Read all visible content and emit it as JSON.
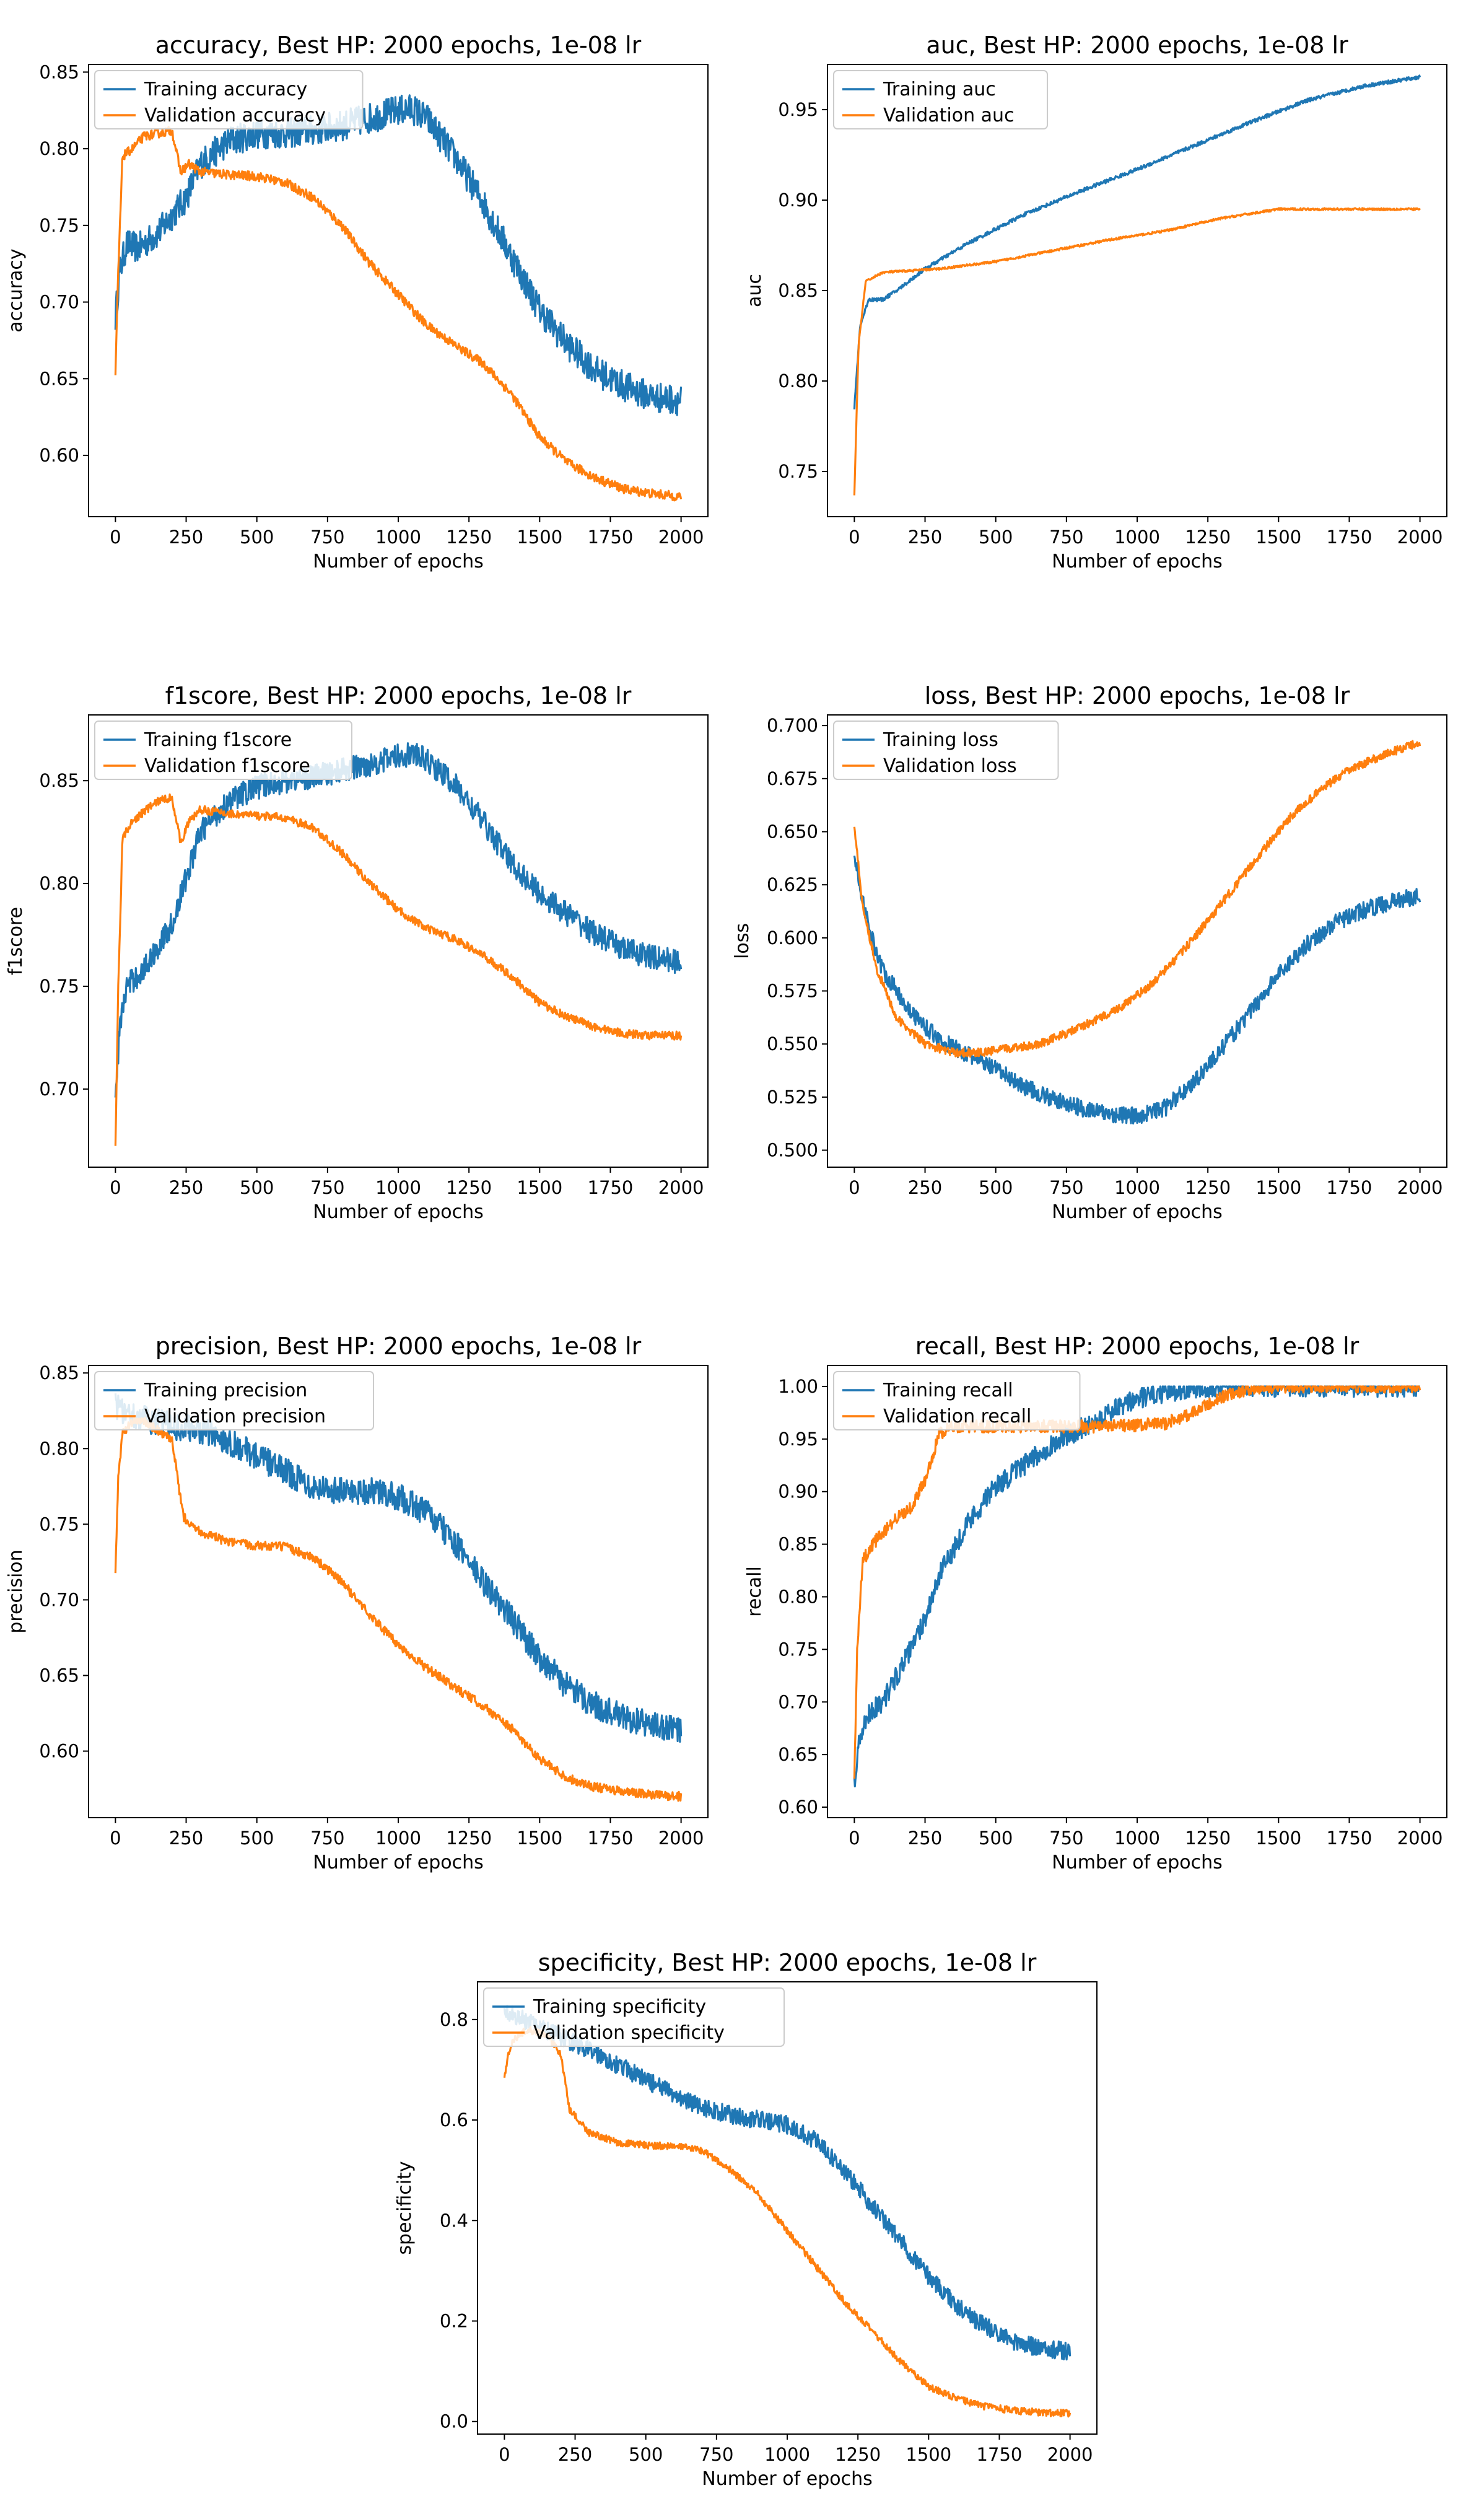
{
  "colors": {
    "training": "#1f77b4",
    "validation": "#ff7f0e"
  },
  "chart_data": [
    {
      "type": "line",
      "title": "accuracy, Best HP: 2000 epochs, 1e-08 lr",
      "xlabel": "Number of epochs",
      "ylabel": "accuracy",
      "xlim": [
        -95,
        2095
      ],
      "ylim": [
        0.56,
        0.855
      ],
      "xticks": [
        0,
        250,
        500,
        750,
        1000,
        1250,
        1500,
        1750,
        2000
      ],
      "yticks": [
        0.6,
        0.65,
        0.7,
        0.75,
        0.8,
        0.85
      ],
      "ytick_labels": [
        "0.60",
        "0.65",
        "0.70",
        "0.75",
        "0.80",
        "0.85"
      ],
      "legend": "top-left",
      "series": [
        {
          "name": "Training accuracy",
          "color": "#1f77b4",
          "noise": 0.01,
          "x": [
            0,
            15,
            40,
            80,
            150,
            250,
            300,
            400,
            500,
            600,
            700,
            800,
            900,
            1000,
            1050,
            1100,
            1200,
            1300,
            1400,
            1500,
            1600,
            1700,
            1800,
            1900,
            2000
          ],
          "y": [
            0.69,
            0.72,
            0.738,
            0.735,
            0.745,
            0.768,
            0.79,
            0.805,
            0.81,
            0.81,
            0.812,
            0.815,
            0.82,
            0.825,
            0.826,
            0.82,
            0.795,
            0.765,
            0.73,
            0.695,
            0.672,
            0.655,
            0.645,
            0.638,
            0.636
          ]
        },
        {
          "name": "Validation accuracy",
          "color": "#ff7f0e",
          "noise": 0.003,
          "x": [
            0,
            10,
            25,
            60,
            100,
            150,
            200,
            230,
            260,
            300,
            400,
            500,
            600,
            700,
            800,
            900,
            1000,
            1100,
            1200,
            1300,
            1400,
            1500,
            1600,
            1700,
            1800,
            1900,
            2000
          ],
          "y": [
            0.652,
            0.72,
            0.795,
            0.8,
            0.808,
            0.81,
            0.812,
            0.785,
            0.79,
            0.785,
            0.783,
            0.782,
            0.778,
            0.768,
            0.75,
            0.725,
            0.705,
            0.685,
            0.672,
            0.66,
            0.64,
            0.612,
            0.595,
            0.585,
            0.578,
            0.575,
            0.573
          ]
        }
      ]
    },
    {
      "type": "line",
      "title": "auc, Best HP: 2000 epochs, 1e-08 lr",
      "xlabel": "Number of epochs",
      "ylabel": "auc",
      "xlim": [
        -95,
        2095
      ],
      "ylim": [
        0.725,
        0.975
      ],
      "xticks": [
        0,
        250,
        500,
        750,
        1000,
        1250,
        1500,
        1750,
        2000
      ],
      "yticks": [
        0.75,
        0.8,
        0.85,
        0.9,
        0.95
      ],
      "ytick_labels": [
        "0.75",
        "0.80",
        "0.85",
        "0.90",
        "0.95"
      ],
      "legend": "top-left",
      "series": [
        {
          "name": "Training auc",
          "color": "#1f77b4",
          "noise": 0.001,
          "x": [
            0,
            20,
            50,
            100,
            150,
            250,
            400,
            600,
            800,
            1000,
            1200,
            1400,
            1600,
            1800,
            2000
          ],
          "y": [
            0.785,
            0.83,
            0.845,
            0.845,
            0.85,
            0.862,
            0.876,
            0.892,
            0.905,
            0.917,
            0.93,
            0.943,
            0.955,
            0.963,
            0.968
          ]
        },
        {
          "name": "Validation auc",
          "color": "#ff7f0e",
          "noise": 0.0006,
          "x": [
            0,
            15,
            40,
            100,
            200,
            300,
            500,
            700,
            900,
            1100,
            1300,
            1500,
            1700,
            1900,
            2000
          ],
          "y": [
            0.737,
            0.82,
            0.855,
            0.86,
            0.861,
            0.862,
            0.866,
            0.872,
            0.878,
            0.883,
            0.89,
            0.895,
            0.895,
            0.895,
            0.895
          ]
        }
      ]
    },
    {
      "type": "line",
      "title": "f1score, Best HP: 2000 epochs, 1e-08 lr",
      "xlabel": "Number of epochs",
      "ylabel": "f1score",
      "xlim": [
        -95,
        2095
      ],
      "ylim": [
        0.662,
        0.882
      ],
      "xticks": [
        0,
        250,
        500,
        750,
        1000,
        1250,
        1500,
        1750,
        2000
      ],
      "yticks": [
        0.7,
        0.75,
        0.8,
        0.85
      ],
      "ytick_labels": [
        "0.70",
        "0.75",
        "0.80",
        "0.85"
      ],
      "legend": "top-left",
      "series": [
        {
          "name": "Training f1score",
          "color": "#1f77b4",
          "noise": 0.006,
          "x": [
            0,
            15,
            40,
            100,
            200,
            300,
            400,
            500,
            600,
            700,
            800,
            900,
            1000,
            1050,
            1100,
            1200,
            1300,
            1400,
            1500,
            1600,
            1700,
            1800,
            1900,
            2000
          ],
          "y": [
            0.695,
            0.73,
            0.75,
            0.758,
            0.78,
            0.825,
            0.84,
            0.847,
            0.85,
            0.852,
            0.855,
            0.858,
            0.862,
            0.863,
            0.86,
            0.848,
            0.83,
            0.81,
            0.795,
            0.785,
            0.775,
            0.768,
            0.764,
            0.762
          ]
        },
        {
          "name": "Validation f1score",
          "color": "#ff7f0e",
          "noise": 0.002,
          "x": [
            0,
            10,
            25,
            60,
            100,
            150,
            200,
            230,
            260,
            300,
            400,
            500,
            600,
            700,
            800,
            900,
            1000,
            1100,
            1200,
            1300,
            1400,
            1500,
            1600,
            1700,
            1800,
            1900,
            2000
          ],
          "y": [
            0.672,
            0.75,
            0.822,
            0.83,
            0.835,
            0.84,
            0.842,
            0.82,
            0.83,
            0.836,
            0.834,
            0.833,
            0.832,
            0.827,
            0.815,
            0.8,
            0.787,
            0.778,
            0.773,
            0.765,
            0.755,
            0.742,
            0.735,
            0.73,
            0.727,
            0.726,
            0.726
          ]
        }
      ]
    },
    {
      "type": "line",
      "title": "loss, Best HP: 2000 epochs, 1e-08 lr",
      "xlabel": "Number of epochs",
      "ylabel": "loss",
      "xlim": [
        -95,
        2095
      ],
      "ylim": [
        0.492,
        0.705
      ],
      "xticks": [
        0,
        250,
        500,
        750,
        1000,
        1250,
        1500,
        1750,
        2000
      ],
      "yticks": [
        0.5,
        0.525,
        0.55,
        0.575,
        0.6,
        0.625,
        0.65,
        0.675,
        0.7
      ],
      "ytick_labels": [
        "0.500",
        "0.525",
        "0.550",
        "0.575",
        "0.600",
        "0.625",
        "0.650",
        "0.675",
        "0.700"
      ],
      "legend": "top-left",
      "series": [
        {
          "name": "Training loss",
          "color": "#1f77b4",
          "noise": 0.004,
          "x": [
            0,
            50,
            100,
            200,
            300,
            400,
            500,
            600,
            700,
            800,
            900,
            1000,
            1100,
            1200,
            1300,
            1400,
            1500,
            1600,
            1700,
            1800,
            1900,
            2000
          ],
          "y": [
            0.638,
            0.605,
            0.585,
            0.565,
            0.552,
            0.545,
            0.538,
            0.53,
            0.524,
            0.52,
            0.517,
            0.516,
            0.52,
            0.532,
            0.548,
            0.565,
            0.583,
            0.597,
            0.607,
            0.613,
            0.617,
            0.62
          ]
        },
        {
          "name": "Validation loss",
          "color": "#ff7f0e",
          "noise": 0.002,
          "x": [
            0,
            30,
            80,
            150,
            250,
            350,
            450,
            550,
            650,
            750,
            850,
            950,
            1050,
            1150,
            1250,
            1350,
            1450,
            1550,
            1650,
            1750,
            1850,
            1950,
            2000
          ],
          "y": [
            0.652,
            0.615,
            0.585,
            0.562,
            0.55,
            0.546,
            0.546,
            0.548,
            0.55,
            0.555,
            0.561,
            0.568,
            0.578,
            0.592,
            0.608,
            0.625,
            0.642,
            0.658,
            0.67,
            0.679,
            0.685,
            0.69,
            0.692
          ]
        }
      ]
    },
    {
      "type": "line",
      "title": "precision, Best HP: 2000 epochs, 1e-08 lr",
      "xlabel": "Number of epochs",
      "ylabel": "precision",
      "xlim": [
        -95,
        2095
      ],
      "ylim": [
        0.556,
        0.855
      ],
      "xticks": [
        0,
        250,
        500,
        750,
        1000,
        1250,
        1500,
        1750,
        2000
      ],
      "yticks": [
        0.6,
        0.65,
        0.7,
        0.75,
        0.8,
        0.85
      ],
      "ytick_labels": [
        "0.60",
        "0.65",
        "0.70",
        "0.75",
        "0.80",
        "0.85"
      ],
      "legend": "top-left",
      "series": [
        {
          "name": "Training precision",
          "color": "#1f77b4",
          "noise": 0.009,
          "x": [
            0,
            30,
            100,
            200,
            300,
            400,
            500,
            600,
            700,
            800,
            900,
            1000,
            1100,
            1200,
            1300,
            1400,
            1500,
            1600,
            1700,
            1800,
            1900,
            2000
          ],
          "y": [
            0.828,
            0.825,
            0.82,
            0.815,
            0.812,
            0.805,
            0.795,
            0.785,
            0.775,
            0.772,
            0.772,
            0.768,
            0.758,
            0.738,
            0.712,
            0.688,
            0.662,
            0.642,
            0.63,
            0.622,
            0.617,
            0.614
          ]
        },
        {
          "name": "Validation precision",
          "color": "#ff7f0e",
          "noise": 0.003,
          "x": [
            0,
            10,
            25,
            60,
            100,
            150,
            200,
            240,
            300,
            400,
            500,
            600,
            700,
            800,
            900,
            1000,
            1100,
            1200,
            1300,
            1400,
            1500,
            1600,
            1700,
            1800,
            1900,
            2000
          ],
          "y": [
            0.718,
            0.78,
            0.81,
            0.818,
            0.818,
            0.812,
            0.805,
            0.755,
            0.745,
            0.738,
            0.736,
            0.735,
            0.728,
            0.712,
            0.69,
            0.67,
            0.655,
            0.642,
            0.63,
            0.615,
            0.595,
            0.582,
            0.576,
            0.573,
            0.571,
            0.57
          ]
        }
      ]
    },
    {
      "type": "line",
      "title": "recall, Best HP: 2000 epochs, 1e-08 lr",
      "xlabel": "Number of epochs",
      "ylabel": "recall",
      "xlim": [
        -95,
        2095
      ],
      "ylim": [
        0.59,
        1.02
      ],
      "xticks": [
        0,
        250,
        500,
        750,
        1000,
        1250,
        1500,
        1750,
        2000
      ],
      "yticks": [
        0.6,
        0.65,
        0.7,
        0.75,
        0.8,
        0.85,
        0.9,
        0.95,
        1.0
      ],
      "ytick_labels": [
        "0.60",
        "0.65",
        "0.70",
        "0.75",
        "0.80",
        "0.85",
        "0.90",
        "0.95",
        "1.00"
      ],
      "legend": "top-left",
      "series": [
        {
          "name": "Training recall",
          "color": "#1f77b4",
          "noise": 0.01,
          "x": [
            0,
            15,
            50,
            100,
            150,
            200,
            250,
            300,
            400,
            500,
            600,
            700,
            800,
            900,
            1000,
            1100,
            1200,
            1300,
            1400,
            1500,
            1600,
            1700,
            1800,
            1900,
            2000
          ],
          "y": [
            0.62,
            0.66,
            0.69,
            0.7,
            0.725,
            0.75,
            0.78,
            0.82,
            0.87,
            0.905,
            0.925,
            0.945,
            0.96,
            0.975,
            0.988,
            0.995,
            0.999,
            1.0,
            1.0,
            1.0,
            1.0,
            1.0,
            1.0,
            1.0,
            1.0
          ]
        },
        {
          "name": "Validation recall",
          "color": "#ff7f0e",
          "noise": 0.006,
          "x": [
            0,
            10,
            30,
            80,
            150,
            200,
            250,
            300,
            350,
            500,
            700,
            900,
            1000,
            1100,
            1200,
            1300,
            1400,
            1500,
            1600,
            1700,
            1800,
            1900,
            2000
          ],
          "y": [
            0.63,
            0.75,
            0.835,
            0.855,
            0.875,
            0.885,
            0.91,
            0.955,
            0.962,
            0.962,
            0.962,
            0.962,
            0.963,
            0.965,
            0.975,
            0.99,
            0.998,
            1.0,
            1.0,
            1.0,
            1.0,
            1.0,
            1.0
          ]
        }
      ]
    },
    {
      "type": "line",
      "title": "specificity, Best HP: 2000 epochs, 1e-08 lr",
      "xlabel": "Number of epochs",
      "ylabel": "specificity",
      "xlim": [
        -95,
        2095
      ],
      "ylim": [
        -0.025,
        0.875
      ],
      "xticks": [
        0,
        250,
        500,
        750,
        1000,
        1250,
        1500,
        1750,
        2000
      ],
      "yticks": [
        0.0,
        0.2,
        0.4,
        0.6,
        0.8
      ],
      "ytick_labels": [
        "0.0",
        "0.2",
        "0.4",
        "0.6",
        "0.8"
      ],
      "legend": "top-left",
      "series": [
        {
          "name": "Training specificity",
          "color": "#1f77b4",
          "noise": 0.018,
          "x": [
            0,
            30,
            100,
            200,
            300,
            400,
            500,
            600,
            700,
            800,
            900,
            1000,
            1100,
            1200,
            1300,
            1400,
            1500,
            1600,
            1700,
            1800,
            1900,
            2000
          ],
          "y": [
            0.82,
            0.81,
            0.79,
            0.765,
            0.74,
            0.71,
            0.68,
            0.65,
            0.625,
            0.61,
            0.6,
            0.59,
            0.56,
            0.5,
            0.43,
            0.36,
            0.29,
            0.23,
            0.19,
            0.16,
            0.145,
            0.14
          ]
        },
        {
          "name": "Validation specificity",
          "color": "#ff7f0e",
          "noise": 0.007,
          "x": [
            0,
            10,
            30,
            80,
            150,
            200,
            230,
            300,
            400,
            500,
            600,
            700,
            800,
            900,
            1000,
            1100,
            1200,
            1300,
            1400,
            1500,
            1600,
            1700,
            1800,
            1900,
            2000
          ],
          "y": [
            0.68,
            0.72,
            0.76,
            0.78,
            0.77,
            0.73,
            0.62,
            0.575,
            0.555,
            0.55,
            0.548,
            0.54,
            0.5,
            0.45,
            0.38,
            0.31,
            0.24,
            0.18,
            0.12,
            0.07,
            0.045,
            0.03,
            0.022,
            0.018,
            0.016
          ]
        }
      ]
    }
  ]
}
